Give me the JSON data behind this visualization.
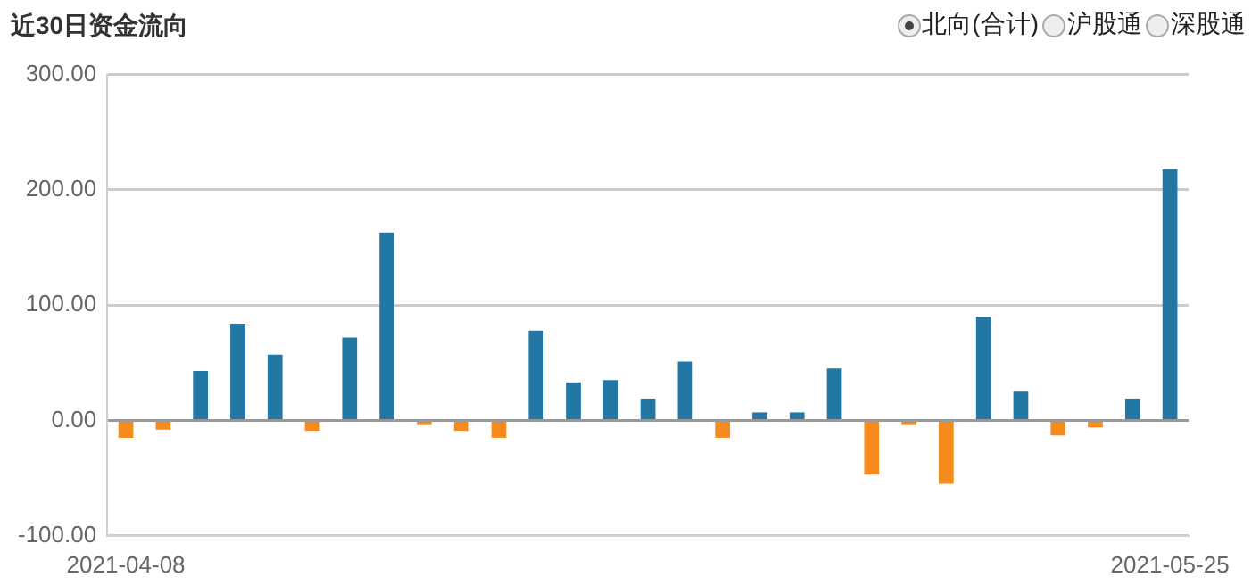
{
  "chart_data": {
    "type": "bar",
    "title": "近30日资金流向",
    "annotations": [
      "北向(合计)",
      "沪股通",
      "深股通"
    ],
    "categories": [
      "2021-04-08",
      null,
      null,
      null,
      null,
      null,
      null,
      null,
      null,
      null,
      null,
      null,
      null,
      null,
      null,
      null,
      null,
      null,
      null,
      null,
      null,
      null,
      null,
      null,
      null,
      null,
      null,
      null,
      "2021-05-25"
    ],
    "values": [
      -15,
      -8,
      43,
      84,
      57,
      -9,
      72,
      163,
      -4,
      -9,
      -15,
      78,
      33,
      35,
      19,
      51,
      -15,
      7,
      7,
      45,
      -47,
      -4,
      -55,
      90,
      25,
      -13,
      -6,
      19,
      218
    ],
    "colors": [
      "#f58b1f",
      "#f58b1f",
      "#2377a4",
      "#2377a4",
      "#2377a4",
      "#f58b1f",
      "#2377a4",
      "#2377a4",
      "#f58b1f",
      "#f58b1f",
      "#f58b1f",
      "#2377a4",
      "#2377a4",
      "#2377a4",
      "#2377a4",
      "#2377a4",
      "#f58b1f",
      "#2377a4",
      "#2377a4",
      "#2377a4",
      "#f58b1f",
      "#f58b1f",
      "#f58b1f",
      "#2377a4",
      "#2377a4",
      "#f58b1f",
      "#f58b1f",
      "#2377a4",
      "#2377a4"
    ],
    "ylim": [
      -100,
      300
    ],
    "yticks": [
      {
        "value": -100,
        "label": "-100.00"
      },
      {
        "value": 0,
        "label": "0.00"
      },
      {
        "value": 100,
        "label": "100.00"
      },
      {
        "value": 200,
        "label": "200.00"
      },
      {
        "value": 300,
        "label": "300.00"
      }
    ],
    "grid": "y"
  }
}
